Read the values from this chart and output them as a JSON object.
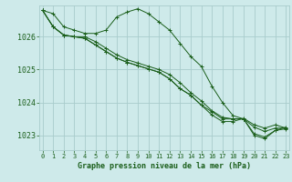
{
  "background_color": "#ceeaea",
  "grid_color": "#a8cccc",
  "line_color": "#1a5e1a",
  "marker_color": "#1a5e1a",
  "title": "Graphe pression niveau de la mer (hPa)",
  "x_ticks": [
    0,
    1,
    2,
    3,
    4,
    5,
    6,
    7,
    8,
    9,
    10,
    11,
    12,
    13,
    14,
    15,
    16,
    17,
    18,
    19,
    20,
    21,
    22,
    23
  ],
  "y_ticks": [
    1023,
    1024,
    1025,
    1026
  ],
  "ylim": [
    1022.55,
    1026.95
  ],
  "xlim": [
    -0.3,
    23.3
  ],
  "series": [
    [
      1026.8,
      1026.7,
      1026.3,
      1026.2,
      1026.1,
      1026.1,
      1026.2,
      1026.6,
      1026.75,
      1026.85,
      1026.7,
      1026.45,
      1026.2,
      1025.8,
      1025.4,
      1025.1,
      1024.5,
      1024.0,
      1023.6,
      1023.5,
      1023.0,
      1022.9,
      1023.15,
      1023.2
    ],
    [
      1026.8,
      1026.3,
      1026.05,
      1026.0,
      1026.0,
      1025.85,
      1025.65,
      1025.45,
      1025.3,
      1025.2,
      1025.1,
      1025.0,
      1024.85,
      1024.6,
      1024.3,
      1024.05,
      1023.75,
      1023.55,
      1023.5,
      1023.5,
      1023.05,
      1022.95,
      1023.15,
      1023.25
    ],
    [
      1026.8,
      1026.3,
      1026.05,
      1026.0,
      1025.95,
      1025.75,
      1025.55,
      1025.35,
      1025.22,
      1025.12,
      1025.02,
      1024.92,
      1024.72,
      1024.42,
      1024.22,
      1023.92,
      1023.72,
      1023.5,
      1023.5,
      1023.5,
      1023.25,
      1023.12,
      1023.22,
      1023.22
    ],
    [
      1026.8,
      1026.3,
      1026.05,
      1026.0,
      1025.95,
      1025.75,
      1025.55,
      1025.35,
      1025.22,
      1025.12,
      1025.02,
      1024.92,
      1024.72,
      1024.42,
      1024.22,
      1023.92,
      1023.62,
      1023.42,
      1023.42,
      1023.52,
      1023.32,
      1023.22,
      1023.32,
      1023.22
    ]
  ]
}
